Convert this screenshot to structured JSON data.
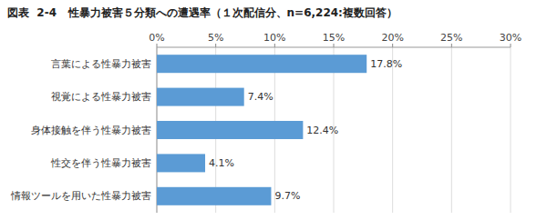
{
  "chart_data": {
    "type": "bar",
    "orientation": "horizontal",
    "title": "図表  2-4   性暴力被害５分類への遭遇率（１次配信分、n=6,224:複数回答）",
    "categories": [
      "情報ツールを用いた性暴力被害",
      "性交を伴う性暴力被害",
      "身体接触を伴う性暴力被害",
      "視覚による性暴力被害",
      "言葉による性暴力被害"
    ],
    "values": [
      9.7,
      4.1,
      12.4,
      7.4,
      17.8
    ],
    "value_labels": [
      "9.7%",
      "4.1%",
      "12.4%",
      "7.4%",
      "17.8%"
    ],
    "data_labels": true,
    "color": "#5b9bd5",
    "xlim": [
      0,
      30
    ],
    "xticks": [
      {
        "value": 0,
        "label": "0%"
      },
      {
        "value": 5,
        "label": "5%"
      },
      {
        "value": 10,
        "label": "10%"
      },
      {
        "value": 15,
        "label": "15%"
      },
      {
        "value": 20,
        "label": "20%"
      },
      {
        "value": 25,
        "label": "25%"
      },
      {
        "value": 30,
        "label": "30%"
      }
    ],
    "grid": true
  }
}
